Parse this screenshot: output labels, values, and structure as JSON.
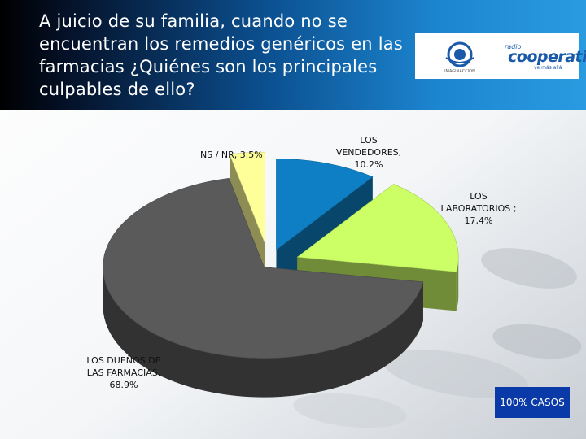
{
  "header": {
    "title": "A juicio de su familia, cuando no se encuentran los remedios genéricos en las farmacias ¿Quiénes son los principales culpables de ello?",
    "logo_left_text": "IMAGINACCION",
    "logo_right_small": "radio",
    "logo_right_main": "cooperativa",
    "logo_right_tag": "ve más allá"
  },
  "badge": {
    "label": "100% CASOS"
  },
  "colors": {
    "header_start": "#000000",
    "header_end": "#2a9be0",
    "badge": "#0a3aa8"
  },
  "chart_data": {
    "type": "pie",
    "title": "",
    "style": "3d-exploded",
    "slices": [
      {
        "label": "LOS VENDEDORES, 10.2%",
        "value": 10.2,
        "color": "#0e7fc4"
      },
      {
        "label": "LOS LABORATORIOS ; 17,4%",
        "value": 17.4,
        "color": "#ccff66"
      },
      {
        "label": "LOS DUEÑOS DE LAS FARMACIAS, 68.9%",
        "value": 68.9,
        "color": "#5a5a5a"
      },
      {
        "label": "NS / NR, 3.5%",
        "value": 3.5,
        "color": "#ffff99"
      }
    ]
  }
}
